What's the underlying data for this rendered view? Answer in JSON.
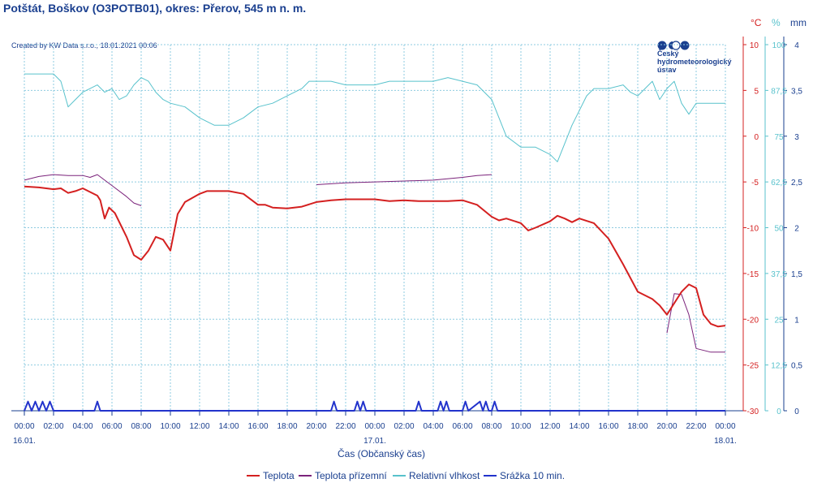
{
  "title": "Potštát, Boškov (O3POTB01), okres: Přerov, 545 m n. m.",
  "credit": "Created by KW Data s.r.o., 18.01.2021 00:06",
  "logo": {
    "line1": "Český",
    "line2": "hydrometeorologický",
    "line3": "ústav",
    "icon_name": "chmi-logo-icon"
  },
  "units": {
    "temperature": "°C",
    "humidity": "%",
    "precipitation": "mm"
  },
  "colors": {
    "temperature": "#d42020",
    "ground": "#7b237b",
    "humidity": "#58c2cc",
    "precip": "#2233cc",
    "text": "#1a3f8f",
    "grid": "#8ecbe0"
  },
  "chart_data": {
    "type": "line",
    "title": "Potštát, Boškov (O3POTB01), okres: Přerov, 545 m n. m.",
    "xlabel": "Čas (Občanský čas)",
    "x_unit": "hours since 16.01. 00:00",
    "x_ticks": [
      "00:00",
      "02:00",
      "04:00",
      "06:00",
      "08:00",
      "10:00",
      "12:00",
      "14:00",
      "16:00",
      "18:00",
      "20:00",
      "22:00",
      "00:00",
      "02:00",
      "04:00",
      "06:00",
      "08:00",
      "10:00",
      "12:00",
      "14:00",
      "16:00",
      "18:00",
      "20:00",
      "22:00",
      "00:00"
    ],
    "date_labels": [
      {
        "hour": 0,
        "text": "16.01."
      },
      {
        "hour": 24,
        "text": "17.01."
      },
      {
        "hour": 48,
        "text": "18.01."
      }
    ],
    "axes": {
      "temperature": {
        "unit": "°C",
        "min": -30,
        "max": 10,
        "ticks": [
          "10",
          "5",
          "0",
          "-5",
          "-10",
          "-15",
          "-20",
          "-25",
          "-30"
        ]
      },
      "humidity": {
        "unit": "%",
        "min": 0,
        "max": 100,
        "ticks": [
          "100",
          "87,5",
          "75",
          "62,5",
          "50",
          "37,5",
          "25",
          "12,5",
          "0"
        ]
      },
      "precipitation": {
        "unit": "mm",
        "min": 0,
        "max": 4,
        "ticks": [
          "4",
          "3,5",
          "3",
          "2,5",
          "2",
          "1,5",
          "1",
          "0,5",
          "0"
        ]
      }
    },
    "grid": true,
    "legend_position": "bottom",
    "legend": [
      "Teplota",
      "Teplota přízemní",
      "Relativní vlhkost",
      "Srážka 10 min."
    ],
    "series": [
      {
        "name": "Teplota",
        "axis": "temperature",
        "x": [
          0,
          1,
          2,
          2.5,
          3,
          3.5,
          4,
          5,
          5.2,
          5.5,
          5.8,
          6.2,
          7,
          7.5,
          8,
          8.5,
          9,
          9.5,
          10,
          10.5,
          11,
          12,
          12.5,
          13,
          14,
          15,
          16,
          16.5,
          17,
          18,
          19,
          20,
          21,
          22,
          23,
          24,
          25,
          26,
          27,
          28,
          29,
          30,
          31,
          32,
          32.5,
          33,
          34,
          34.5,
          35,
          36,
          36.5,
          37,
          37.5,
          38,
          39,
          40,
          41,
          42,
          43,
          43.5,
          44,
          45,
          45.5,
          46,
          46.5,
          47,
          47.5,
          48
        ],
        "y": [
          -5.5,
          -5.6,
          -5.8,
          -5.7,
          -6.2,
          -6,
          -5.7,
          -6.5,
          -7,
          -9,
          -7.8,
          -8.4,
          -11,
          -13,
          -13.5,
          -12.5,
          -11,
          -11.3,
          -12.5,
          -8.5,
          -7.2,
          -6.3,
          -6,
          -6,
          -6,
          -6.3,
          -7.5,
          -7.5,
          -7.8,
          -7.9,
          -7.7,
          -7.2,
          -7,
          -6.9,
          -6.9,
          -6.9,
          -7.1,
          -7,
          -7.1,
          -7.1,
          -7.1,
          -7.0,
          -7.5,
          -8.8,
          -9.2,
          -9.0,
          -9.5,
          -10.3,
          -10.0,
          -9.3,
          -8.7,
          -9.0,
          -9.4,
          -9.0,
          -9.5,
          -11.2,
          -14,
          -17,
          -17.8,
          -18.5,
          -19.5,
          -17,
          -16.2,
          -16.6,
          -19.5,
          -20.5,
          -20.8,
          -20.7
        ]
      },
      {
        "name": "Teplota přízemní",
        "axis": "temperature",
        "segments": [
          {
            "x": [
              0,
              1,
              2,
              3,
              4,
              4.5,
              5,
              5.5,
              6,
              7,
              7.5,
              8
            ],
            "y": [
              -4.8,
              -4.4,
              -4.2,
              -4.3,
              -4.3,
              -4.5,
              -4.2,
              -4.8,
              -5.4,
              -6.6,
              -7.3,
              -7.6
            ]
          },
          {
            "x": [
              20,
              22,
              24,
              26,
              28,
              30,
              31,
              32
            ],
            "y": [
              -5.3,
              -5.1,
              -5.0,
              -4.9,
              -4.8,
              -4.5,
              -4.3,
              -4.2
            ]
          },
          {
            "x": [
              44,
              44.5,
              45,
              45.5,
              46,
              47,
              48
            ],
            "y": [
              -21.5,
              -17.2,
              -17.3,
              -19.5,
              -23.2,
              -23.6,
              -23.6
            ]
          }
        ]
      },
      {
        "name": "Relativní vlhkost",
        "axis": "humidity",
        "x": [
          0,
          1,
          2,
          2.5,
          3,
          3.5,
          4,
          4.5,
          5,
          5.5,
          6,
          6.5,
          7,
          7.5,
          8,
          8.5,
          9,
          9.5,
          10,
          11,
          12,
          13,
          14,
          15,
          16,
          17,
          18,
          19,
          19.5,
          20,
          21,
          22,
          23,
          24,
          25,
          26,
          27,
          28,
          29,
          30,
          31,
          32,
          32.5,
          33,
          34,
          35,
          36,
          36.5,
          37,
          37.5,
          38,
          38.5,
          39,
          40,
          41,
          41.5,
          42,
          42.5,
          43,
          43.5,
          44,
          44.5,
          45,
          45.5,
          46,
          47,
          48
        ],
        "y": [
          92,
          92,
          92,
          90,
          83,
          85,
          87,
          88,
          89,
          87,
          88,
          85,
          86,
          89,
          91,
          90,
          87,
          85,
          84,
          83,
          80,
          78,
          78,
          80,
          83,
          84,
          86,
          88,
          90,
          90,
          90,
          89,
          89,
          89,
          90,
          90,
          90,
          90,
          91,
          90,
          89,
          85,
          80,
          75,
          72,
          72,
          70,
          68,
          73,
          78,
          82,
          86,
          88,
          88,
          89,
          87,
          86,
          88,
          90,
          85,
          88,
          90,
          84,
          81,
          84,
          84,
          84
        ]
      },
      {
        "name": "Srážka 10 min.",
        "axis": "precipitation",
        "x": [
          0,
          0.25,
          0.5,
          0.75,
          1,
          1.25,
          1.5,
          1.75,
          2,
          4.8,
          5,
          5.2,
          21,
          21.2,
          21.4,
          22.6,
          22.8,
          23,
          23.2,
          23.4,
          26.8,
          27,
          27.2,
          28.3,
          28.5,
          28.7,
          28.9,
          29.1,
          29.3,
          30,
          30.2,
          30.4,
          31.2,
          31.4,
          31.6,
          31.8,
          32,
          32.2,
          32.4
        ],
        "y": [
          0,
          0.1,
          0,
          0.1,
          0,
          0.1,
          0,
          0.1,
          0,
          0,
          0.1,
          0,
          0,
          0.1,
          0,
          0,
          0.1,
          0,
          0.1,
          0,
          0,
          0.1,
          0,
          0,
          0.1,
          0,
          0.1,
          0,
          0,
          0,
          0.1,
          0,
          0.1,
          0,
          0.1,
          0,
          0,
          0.1,
          0
        ]
      }
    ]
  }
}
